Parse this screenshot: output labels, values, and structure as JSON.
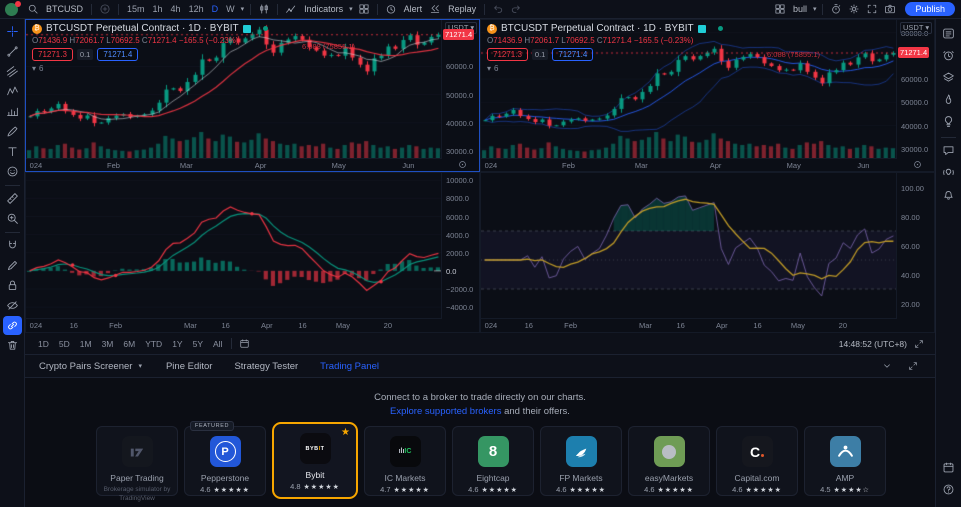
{
  "topbar": {
    "symbol": "BTCUSD",
    "intervals": [
      "15m",
      "1h",
      "4h",
      "12h",
      "D",
      "W"
    ],
    "active_interval": "D",
    "indicators_label": "Indicators",
    "alert_label": "Alert",
    "replay_label": "Replay",
    "layout_name": "bull",
    "publish_label": "Publish"
  },
  "left_toolbar": [
    "crosshair",
    "trend-line",
    "channels",
    "pattern",
    "forecast",
    "brush",
    "text",
    "emoji",
    "divider",
    "ruler",
    "zoom-in",
    "divider",
    "magnet",
    "drawing-mode",
    "lock",
    "hide",
    "sync-drawings",
    "remove"
  ],
  "left_toolbar_selected": "sync-drawings",
  "right_sidebar_top": [
    "watchlist",
    "alerts",
    "layers",
    "hotlists",
    "ideas",
    "divider",
    "chat",
    "streams",
    "notifications"
  ],
  "right_sidebar_bottom": [
    "calendar",
    "help"
  ],
  "chart_header": {
    "title": "BTCUSDT Perpetual Contract · 1D · BYBIT",
    "ohlc": {
      "o_label": "O",
      "o": "71436.9",
      "h_label": "H",
      "h": "72061.7",
      "l_label": "L",
      "l": "70692.5",
      "c_label": "C",
      "c": "71271.4",
      "change": "−165.5 (−0.23%)"
    },
    "sell": "71271.3",
    "spread": "0.1",
    "buy": "71271.4",
    "collapsed_count": "6",
    "annotation": "6.088 (75855.1)",
    "currency": "USDT"
  },
  "chart_data": {
    "type": "multi-pane",
    "symbol": "BTCUSDT Perpetual Contract",
    "interval": "1D",
    "exchange": "BYBIT",
    "last_price": 71271.4,
    "closes": [
      42280,
      44180,
      43900,
      45100,
      46700,
      44100,
      42800,
      41500,
      42600,
      39900,
      40100,
      41700,
      42550,
      43100,
      42030,
      42580,
      43000,
      44350,
      47150,
      51800,
      52250,
      51300,
      54500,
      57040,
      62500,
      62000,
      63160,
      68300,
      69900,
      68500,
      69950,
      71450,
      73080,
      67800,
      64900,
      68390,
      69600,
      70800,
      69500,
      66800,
      65650,
      63840,
      64100,
      63800,
      66840,
      63160,
      60640,
      58250,
      62900,
      63890,
      67100,
      66270,
      69400,
      71100,
      67700,
      68500,
      70500,
      71271.4
    ],
    "volumes": [
      12,
      18,
      15,
      14,
      20,
      22,
      16,
      13,
      15,
      24,
      18,
      14,
      12,
      11,
      10,
      12,
      13,
      16,
      22,
      34,
      30,
      26,
      28,
      32,
      40,
      30,
      26,
      36,
      33,
      25,
      24,
      28,
      38,
      30,
      26,
      22,
      20,
      22,
      18,
      20,
      18,
      22,
      16,
      14,
      20,
      24,
      22,
      26,
      20,
      16,
      18,
      14,
      16,
      20,
      18,
      14,
      16,
      15
    ],
    "panes": [
      {
        "name": "price-main",
        "type": "candlestick",
        "ylim": [
          27500,
          76500
        ],
        "y_ticks": [
          {
            "v": 60000,
            "label": "60000.0"
          },
          {
            "v": 50000,
            "label": "50000.0"
          },
          {
            "v": 40000,
            "label": "40000.0"
          },
          {
            "v": 30000,
            "label": "30000.0"
          }
        ],
        "price_tag": "71271.4",
        "overlays": [
          "sma"
        ]
      },
      {
        "name": "price-bollinger",
        "type": "candlestick",
        "ylim": [
          26000,
          85500
        ],
        "y_ticks": [
          {
            "v": 80000,
            "label": "80000.0"
          },
          {
            "v": 60000,
            "label": "60000.0"
          },
          {
            "v": 50000,
            "label": "50000.0"
          },
          {
            "v": 40000,
            "label": "40000.0"
          },
          {
            "v": 30000,
            "label": "30000.0"
          }
        ],
        "price_tag": "71271.4",
        "overlays": [
          "bollinger"
        ]
      },
      {
        "name": "macd",
        "type": "macd",
        "ylim": [
          -5200,
          10800
        ],
        "y_ticks": [
          {
            "v": 10000,
            "label": "10000.0"
          },
          {
            "v": 8000,
            "label": "8000.0"
          },
          {
            "v": 6000,
            "label": "6000.0"
          },
          {
            "v": 4000,
            "label": "4000.0"
          },
          {
            "v": 2000,
            "label": "2000.0"
          },
          {
            "v": 0,
            "label": "0.0"
          },
          {
            "v": -2000,
            "label": "−2000.0"
          },
          {
            "v": -4000,
            "label": "−4000.0"
          }
        ]
      },
      {
        "name": "rsi",
        "type": "rsi",
        "ylim": [
          10,
          110
        ],
        "y_ticks": [
          {
            "v": 100,
            "label": "100.00"
          },
          {
            "v": 80,
            "label": "80.00"
          },
          {
            "v": 60,
            "label": "60.00"
          },
          {
            "v": 40,
            "label": "40.00"
          },
          {
            "v": 20,
            "label": "20.00"
          }
        ],
        "bands": [
          70,
          50,
          30
        ]
      }
    ],
    "x_ticks_top": [
      {
        "label": "024",
        "pos": 0.004
      },
      {
        "label": "Feb",
        "pos": 0.19
      },
      {
        "label": "Mar",
        "pos": 0.365
      },
      {
        "label": "Apr",
        "pos": 0.545
      },
      {
        "label": "May",
        "pos": 0.73
      },
      {
        "label": "Jun",
        "pos": 0.9
      }
    ],
    "x_ticks_bottom": [
      {
        "label": "024",
        "pos": 0.004
      },
      {
        "label": "16",
        "pos": 0.1
      },
      {
        "label": "Feb",
        "pos": 0.195
      },
      {
        "label": "Mar",
        "pos": 0.375
      },
      {
        "label": "16",
        "pos": 0.465
      },
      {
        "label": "Apr",
        "pos": 0.56
      },
      {
        "label": "16",
        "pos": 0.65
      },
      {
        "label": "May",
        "pos": 0.74
      },
      {
        "label": "20",
        "pos": 0.855
      }
    ]
  },
  "bottom_bar": {
    "ranges": [
      "1D",
      "5D",
      "1M",
      "3M",
      "6M",
      "YTD",
      "1Y",
      "5Y",
      "All"
    ],
    "clock": "14:48:52 (UTC+8)"
  },
  "tabs": [
    {
      "label": "Crypto Pairs Screener",
      "chevron": true,
      "active": false
    },
    {
      "label": "Pine Editor",
      "active": false
    },
    {
      "label": "Strategy Tester",
      "active": false
    },
    {
      "label": "Trading Panel",
      "active": true
    }
  ],
  "trading_panel": {
    "headline": "Connect to a broker to trade directly on our charts.",
    "link": "Explore supported brokers",
    "link_suffix": " and their offers.",
    "featured_label": "FEATURED",
    "brokers": [
      {
        "name": "Paper Trading",
        "subtitle": "Brokerage simulator by TradingView",
        "logo": "tradingview",
        "logo_bg": "#14171e",
        "rating": "",
        "stars": ""
      },
      {
        "name": "Pepperstone",
        "logo": "pepperstone",
        "logo_bg": "#2257d8",
        "rating": "4.6",
        "stars": "★★★★★",
        "featured": true
      },
      {
        "name": "Bybit",
        "logo": "bybit",
        "logo_bg": "#0b0b10",
        "rating": "4.8",
        "stars": "★★★★★",
        "selected": true
      },
      {
        "name": "IC Markets",
        "logo": "icmarkets",
        "logo_bg": "#08090c",
        "rating": "4.7",
        "stars": "★★★★★"
      },
      {
        "name": "Eightcap",
        "logo": "eightcap",
        "logo_bg": "#359663",
        "rating": "4.6",
        "stars": "★★★★★"
      },
      {
        "name": "FP Markets",
        "logo": "fpmarkets",
        "logo_bg": "#1d7fae",
        "rating": "4.6",
        "stars": "★★★★★"
      },
      {
        "name": "easyMarkets",
        "logo": "easymarkets",
        "logo_bg": "#6f9c55",
        "rating": "4.6",
        "stars": "★★★★★"
      },
      {
        "name": "Capital.com",
        "logo": "capital",
        "logo_bg": "#15171e",
        "rating": "4.6",
        "stars": "★★★★★"
      },
      {
        "name": "AMP",
        "logo": "amp",
        "logo_bg": "#3d7ea6",
        "rating": "4.5",
        "stars": "★★★★☆"
      }
    ]
  },
  "colors": {
    "accent": "#2962ff",
    "red": "#f23645",
    "green": "#089981",
    "orange": "#f7a600",
    "yellow": "#c9a227",
    "blue_line": "#2962ff"
  }
}
